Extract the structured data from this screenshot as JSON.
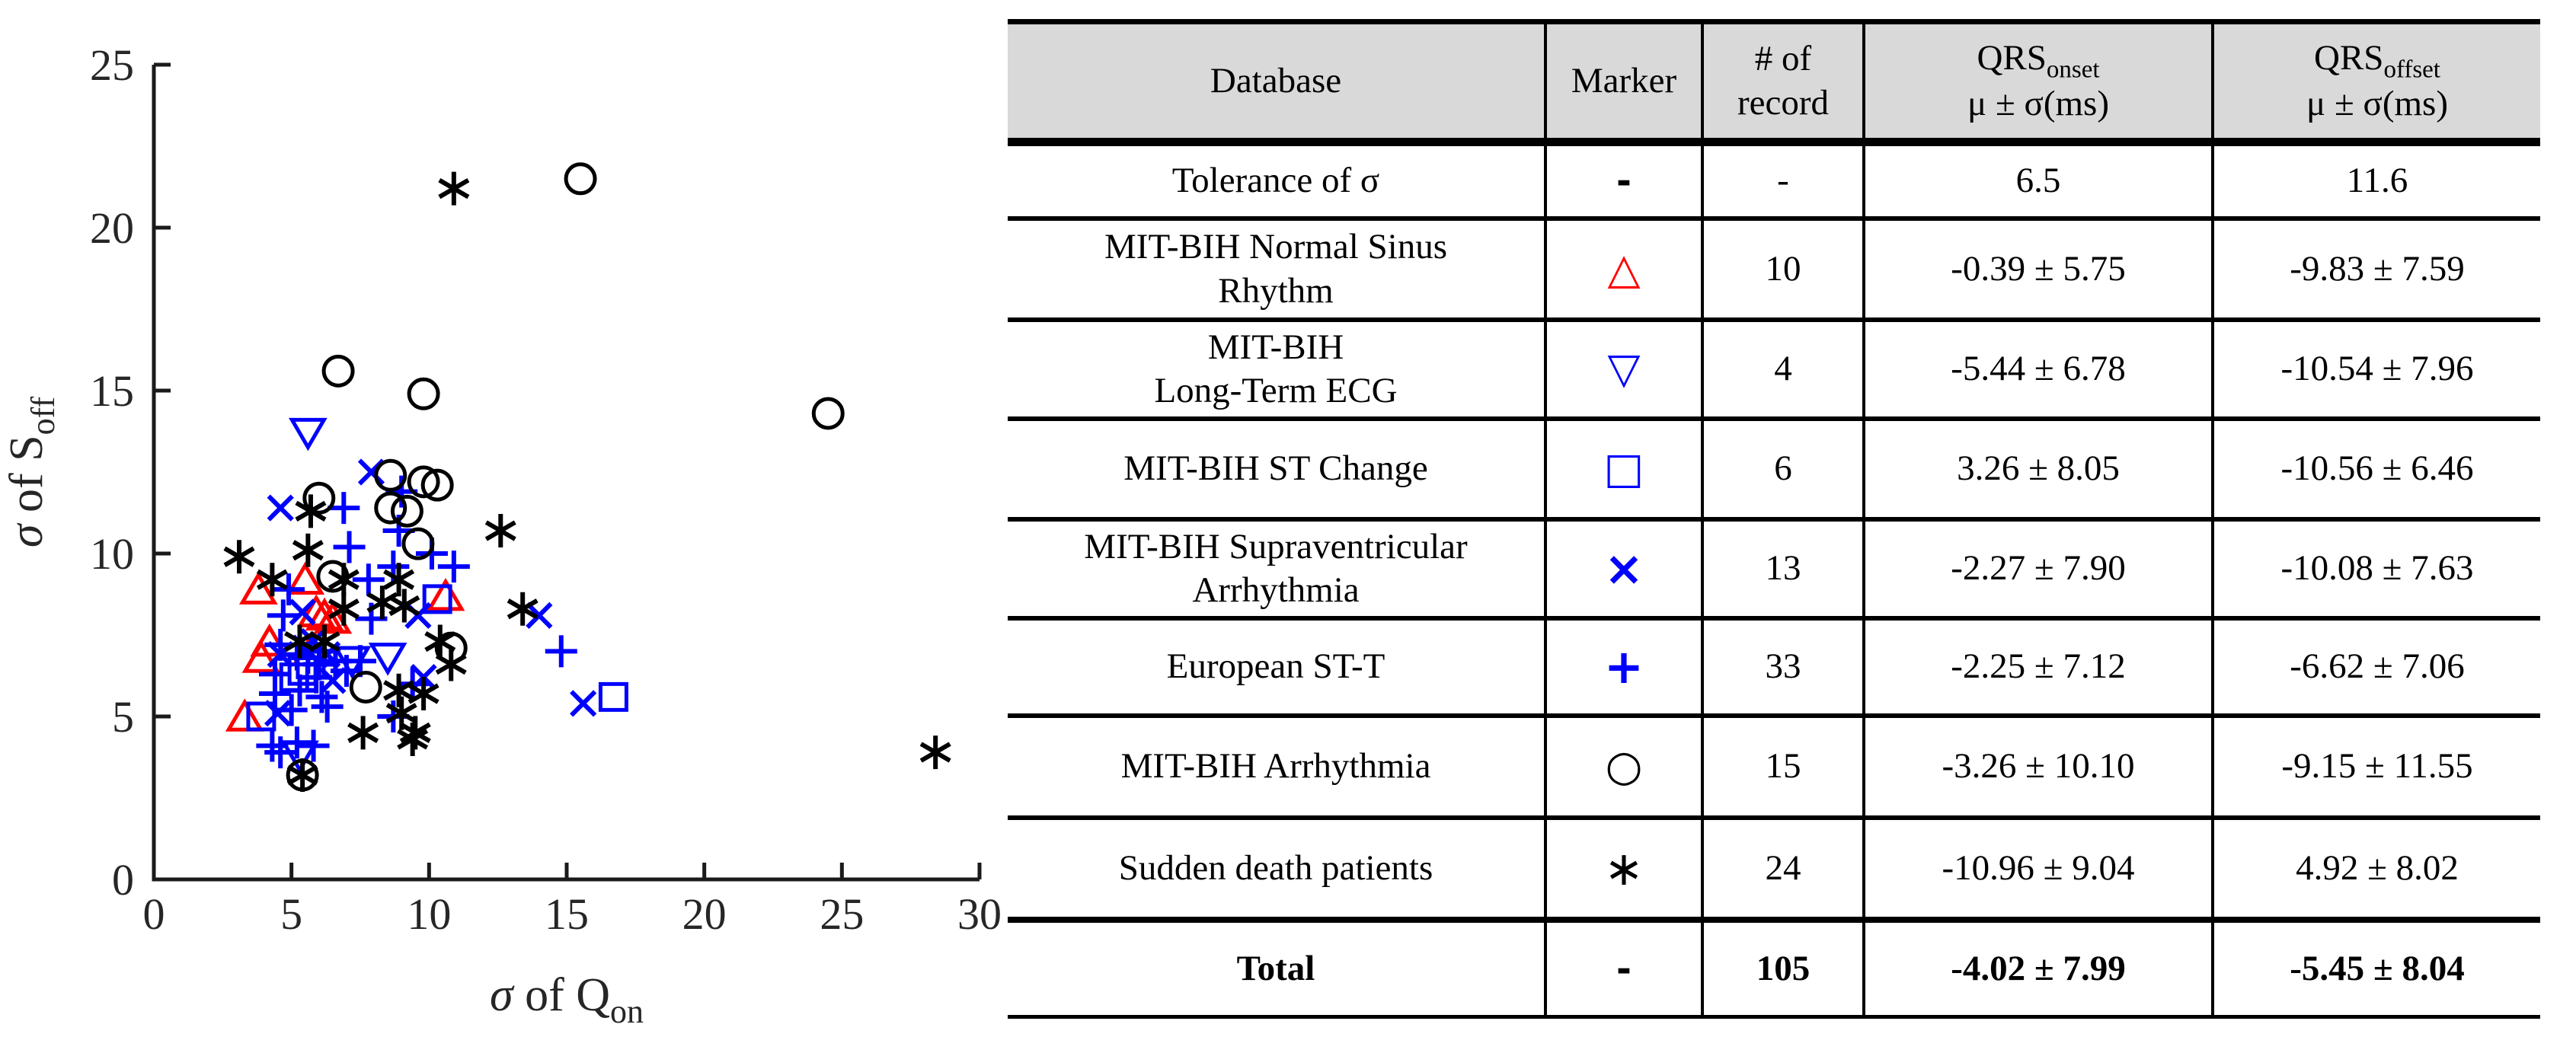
{
  "colors": {
    "red": "#ff0000",
    "blue": "#0000ff",
    "black": "#000000",
    "axis": "#1a1a1a",
    "axis_text": "#262626",
    "table_header_bg": "#d9d9d9"
  },
  "chart": {
    "xlabel_sigma": "σ",
    "xlabel_rest": " of Q",
    "xlabel_sub": "on",
    "ylabel_sigma": "σ",
    "ylabel_rest": " of S",
    "ylabel_sub": "off",
    "xticks": [
      0,
      5,
      10,
      15,
      20,
      25,
      30
    ],
    "yticks": [
      0,
      5,
      10,
      15,
      20,
      25
    ]
  },
  "chart_data": {
    "type": "scatter",
    "xlabel": "sigma of Q_on",
    "ylabel": "sigma of S_off",
    "xlim": [
      0,
      30
    ],
    "ylim": [
      0,
      25
    ],
    "grid": false,
    "legend": "none (markers identified in table)",
    "series": [
      {
        "name": "MIT-BIH Normal Sinus Rhythm",
        "marker": "triangle-up",
        "color": "#ff0000",
        "points": [
          [
            3.8,
            8.8
          ],
          [
            5.5,
            9.1
          ],
          [
            5.9,
            8.1
          ],
          [
            6.5,
            7.9
          ],
          [
            4.2,
            7.2
          ],
          [
            3.9,
            6.7
          ],
          [
            3.3,
            4.9
          ],
          [
            10.6,
            8.6
          ],
          [
            5.7,
            6.9
          ],
          [
            6.2,
            8.0
          ]
        ]
      },
      {
        "name": "MIT-BIH Long-Term ECG",
        "marker": "triangle-down",
        "color": "#0000ff",
        "points": [
          [
            5.6,
            13.8
          ],
          [
            7.2,
            6.8
          ],
          [
            8.5,
            6.9
          ],
          [
            5.3,
            3.9
          ]
        ]
      },
      {
        "name": "MIT-BIH ST Change",
        "marker": "square",
        "color": "#0000ff",
        "points": [
          [
            5.7,
            6.6
          ],
          [
            5.1,
            6.2
          ],
          [
            3.9,
            5.0
          ],
          [
            10.3,
            8.6
          ],
          [
            16.7,
            5.6
          ],
          [
            5.4,
            6.4
          ]
        ]
      },
      {
        "name": "MIT-BIH Supraventricular Arrhythmia",
        "marker": "x",
        "color": "#0000ff",
        "points": [
          [
            7.9,
            12.5
          ],
          [
            4.6,
            11.4
          ],
          [
            5.4,
            8.2
          ],
          [
            5.5,
            7.1
          ],
          [
            4.6,
            6.9
          ],
          [
            6.5,
            6.1
          ],
          [
            4.5,
            5.1
          ],
          [
            9.6,
            8.1
          ],
          [
            14.0,
            8.1
          ],
          [
            9.8,
            6.2
          ],
          [
            15.6,
            5.4
          ],
          [
            5.8,
            7.3
          ],
          [
            6.3,
            6.9
          ]
        ]
      },
      {
        "name": "European ST-T",
        "marker": "plus",
        "color": "#0000ff",
        "points": [
          [
            6.9,
            11.4
          ],
          [
            9.0,
            11.9
          ],
          [
            8.9,
            10.7
          ],
          [
            7.1,
            10.2
          ],
          [
            4.9,
            8.9
          ],
          [
            7.8,
            9.2
          ],
          [
            8.7,
            9.6
          ],
          [
            4.7,
            8.1
          ],
          [
            7.9,
            8.0
          ],
          [
            4.6,
            7.2
          ],
          [
            7.5,
            6.7
          ],
          [
            4.4,
            6.3
          ],
          [
            7.0,
            6.4
          ],
          [
            4.4,
            5.7
          ],
          [
            6.3,
            5.3
          ],
          [
            5.0,
            5.2
          ],
          [
            10.1,
            10.0
          ],
          [
            10.9,
            9.6
          ],
          [
            14.8,
            7.0
          ],
          [
            9.4,
            6.0
          ],
          [
            4.3,
            4.1
          ],
          [
            4.6,
            3.9
          ],
          [
            5.2,
            4.2
          ],
          [
            5.8,
            4.1
          ],
          [
            8.7,
            5.0
          ],
          [
            5.6,
            6.8
          ],
          [
            6.0,
            6.6
          ],
          [
            6.2,
            7.0
          ],
          [
            5.2,
            6.9
          ],
          [
            5.9,
            6.2
          ],
          [
            6.6,
            6.7
          ],
          [
            5.3,
            5.8
          ],
          [
            6.1,
            5.6
          ]
        ]
      },
      {
        "name": "MIT-BIH Arrhythmia",
        "marker": "circle",
        "color": "#000000",
        "points": [
          [
            15.5,
            21.5
          ],
          [
            6.7,
            15.6
          ],
          [
            9.8,
            14.9
          ],
          [
            24.5,
            14.3
          ],
          [
            8.6,
            12.4
          ],
          [
            9.8,
            12.2
          ],
          [
            10.3,
            12.1
          ],
          [
            6.0,
            11.7
          ],
          [
            8.6,
            11.4
          ],
          [
            9.2,
            11.3
          ],
          [
            9.6,
            10.3
          ],
          [
            6.5,
            9.3
          ],
          [
            10.8,
            7.1
          ],
          [
            7.7,
            5.9
          ],
          [
            5.4,
            3.2
          ]
        ]
      },
      {
        "name": "Sudden death patients",
        "marker": "asterisk",
        "color": "#000000",
        "points": [
          [
            10.9,
            21.2
          ],
          [
            12.6,
            10.7
          ],
          [
            5.7,
            11.3
          ],
          [
            5.6,
            10.1
          ],
          [
            3.1,
            9.9
          ],
          [
            4.3,
            9.2
          ],
          [
            6.9,
            9.2
          ],
          [
            8.9,
            9.2
          ],
          [
            8.3,
            8.5
          ],
          [
            9.1,
            8.4
          ],
          [
            6.9,
            8.3
          ],
          [
            5.3,
            7.3
          ],
          [
            6.2,
            7.3
          ],
          [
            13.4,
            8.3
          ],
          [
            10.4,
            7.3
          ],
          [
            10.8,
            6.6
          ],
          [
            9.8,
            5.7
          ],
          [
            8.9,
            5.8
          ],
          [
            9.5,
            4.5
          ],
          [
            7.6,
            4.5
          ],
          [
            9.4,
            4.3
          ],
          [
            9.0,
            5.1
          ],
          [
            5.4,
            3.2
          ],
          [
            28.4,
            3.9
          ]
        ]
      }
    ]
  },
  "table": {
    "header": {
      "database": "Database",
      "marker": "Marker",
      "records": "# of\nrecord",
      "qrs": "QRS",
      "qrs_onset_sub": "onset",
      "qrs_offset_sub": "offset",
      "mu_sigma": "μ ± σ(ms)"
    },
    "rows": [
      {
        "database": "Tolerance of σ",
        "marker": "-",
        "marker_class": "cell-marker mk-black mk-dash",
        "records": "-",
        "onset": "6.5",
        "offset": "11.6"
      },
      {
        "database": "MIT-BIH Normal Sinus\nRhythm",
        "marker": "△",
        "marker_class": "cell-marker mk-red mk-shape",
        "records": "10",
        "onset": "-0.39 ± 5.75",
        "offset": "-9.83 ± 7.59"
      },
      {
        "database": "MIT-BIH\nLong-Term ECG",
        "marker": "▽",
        "marker_class": "cell-marker mk-blue mk-shape",
        "records": "4",
        "onset": "-5.44 ± 6.78",
        "offset": "-10.54 ± 7.96"
      },
      {
        "database": "MIT-BIH ST Change",
        "marker": "□",
        "marker_class": "cell-marker mk-blue mk-shape",
        "records": "6",
        "onset": "3.26 ± 8.05",
        "offset": "-10.56 ± 6.46"
      },
      {
        "database": "MIT-BIH Supraventricular\nArrhythmia",
        "marker": "×",
        "marker_class": "cell-marker mk-blue mk-op",
        "records": "13",
        "onset": "-2.27 ± 7.90",
        "offset": "-10.08 ± 7.63"
      },
      {
        "database": "European ST-T",
        "marker": "+",
        "marker_class": "cell-marker mk-blue mk-op",
        "records": "33",
        "onset": "-2.25 ± 7.12",
        "offset": "-6.62 ± 7.06"
      },
      {
        "database": "MIT-BIH Arrhythmia",
        "marker": "○",
        "marker_class": "cell-marker mk-black mk-shape",
        "records": "15",
        "onset": "-3.26 ± 10.10",
        "offset": "-9.15 ± 11.55"
      },
      {
        "database": "Sudden death patients",
        "marker": "∗",
        "marker_class": "cell-marker mk-black mk-ast",
        "records": "24",
        "onset": "-10.96 ± 9.04",
        "offset": "4.92 ± 8.02"
      },
      {
        "database": "Total",
        "marker": "-",
        "marker_class": "cell-marker mk-black mk-dash",
        "records": "105",
        "onset": "-4.02 ± 7.99",
        "offset": "-5.45 ± 8.04"
      }
    ]
  }
}
